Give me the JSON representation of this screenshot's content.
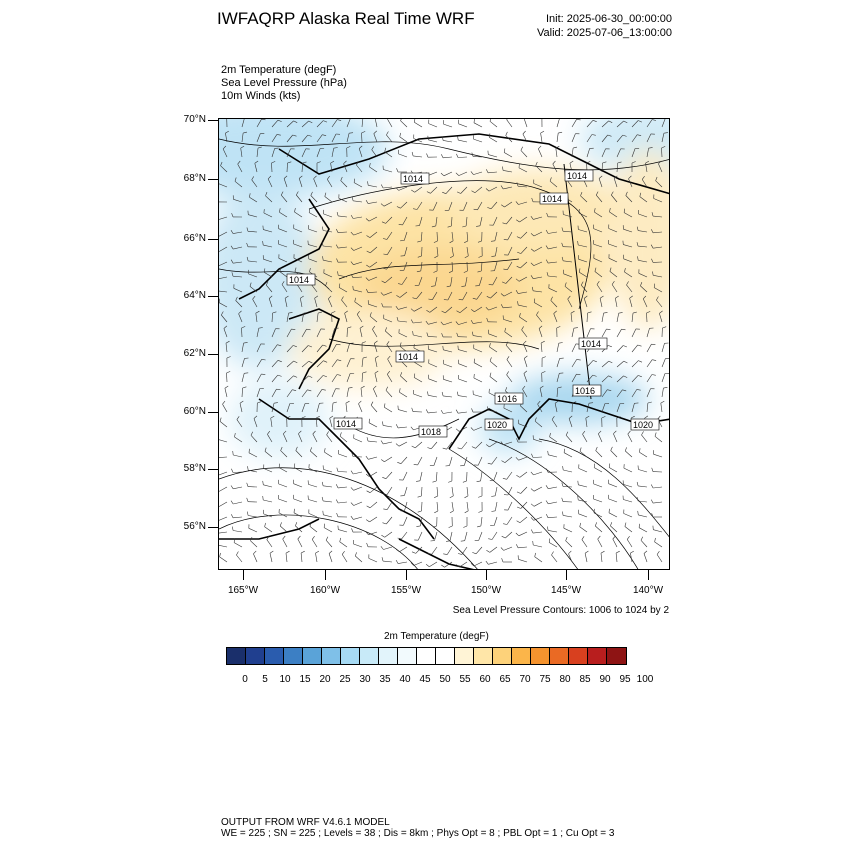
{
  "title": "IWFAQRP Alaska Real Time WRF",
  "init": "Init: 2025-06-30_00:00:00",
  "valid": "Valid: 2025-07-06_13:00:00",
  "fields": [
    "2m Temperature   (degF)",
    "Sea Level Pressure   (hPa)",
    "10m Winds   (kts)"
  ],
  "lat_labels": [
    "70°N",
    "68°N",
    "66°N",
    "64°N",
    "62°N",
    "60°N",
    "58°N",
    "56°N"
  ],
  "lon_labels": [
    "165°W",
    "160°W",
    "155°W",
    "150°W",
    "145°W",
    "140°W"
  ],
  "contour_labels": [
    "1014",
    "1014",
    "1014",
    "1014",
    "1014",
    "1014",
    "1014",
    "1016",
    "1016",
    "1020",
    "1014",
    "1018",
    "1020"
  ],
  "slp_note": "Sea Level Pressure Contours: 1006 to 1024 by 2",
  "colorbar": {
    "title": "2m Temperature  (degF)",
    "labels": [
      "0",
      "5",
      "10",
      "15",
      "20",
      "25",
      "30",
      "35",
      "40",
      "45",
      "50",
      "55",
      "60",
      "65",
      "70",
      "75",
      "80",
      "85",
      "90",
      "95",
      "100"
    ],
    "colors": [
      "#1a2f6b",
      "#203f8f",
      "#2a5cae",
      "#3c7fc4",
      "#5aa3d8",
      "#7fc0e8",
      "#a6daf4",
      "#c8eaf8",
      "#e2f4fb",
      "#f2fafd",
      "#ffffff",
      "#ffffff",
      "#fff4d6",
      "#ffe6a8",
      "#fdd27a",
      "#fbb54a",
      "#f5932e",
      "#ea6a24",
      "#d8401f",
      "#b81e1e",
      "#8e1414"
    ]
  },
  "footer": {
    "line1": "OUTPUT FROM WRF V4.6.1 MODEL",
    "line2": "WE = 225 ; SN = 225 ; Levels = 38 ; Dis = 8km ; Phys Opt = 8 ; PBL Opt = 1 ; Cu Opt = 3"
  }
}
